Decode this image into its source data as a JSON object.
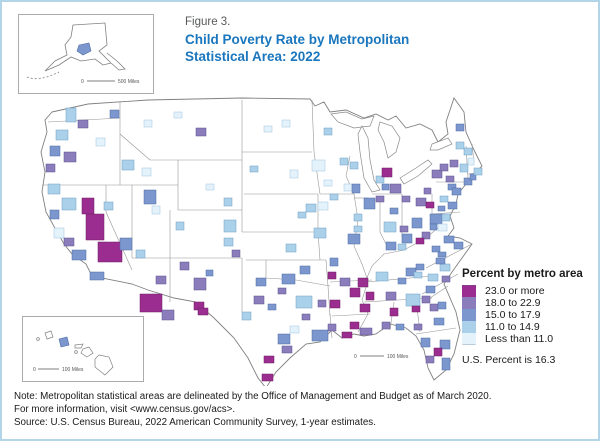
{
  "figure": {
    "label": "Figure 3.",
    "title_line1": "Child Poverty Rate by Metropolitan",
    "title_line2": "Statistical Area: 2022"
  },
  "legend": {
    "title": "Percent by metro area",
    "items": [
      {
        "label": "23.0 or more",
        "color": "#9B2D90",
        "border": "#6B1E63"
      },
      {
        "label": "18.0 to 22.9",
        "color": "#8B7CBB",
        "border": "#5D5390"
      },
      {
        "label": "15.0 to 17.9",
        "color": "#7C97CD",
        "border": "#4F6BA6"
      },
      {
        "label": "11.0 to 14.9",
        "color": "#AAD0EA",
        "border": "#6E9EC6"
      },
      {
        "label": "Less than 11.0",
        "color": "#E4F2FB",
        "border": "#9FC4DC"
      }
    ],
    "us_note": "U.S. Percent is 16.3"
  },
  "insets": {
    "alaska": {
      "scale_zero": "0",
      "scale_label": "500 Miles"
    },
    "hawaii": {
      "scale_zero": "0",
      "scale_label": "100 Miles"
    }
  },
  "map": {
    "scale_zero": "0",
    "scale_label": "100 Miles",
    "metros": [
      [
        34,
        112,
        14,
        12,
        4
      ],
      [
        22,
        124,
        9,
        9,
        3
      ],
      [
        26,
        142,
        10,
        10,
        5
      ],
      [
        54,
        112,
        12,
        16,
        1
      ],
      [
        58,
        128,
        18,
        26,
        1
      ],
      [
        70,
        156,
        24,
        20,
        1
      ],
      [
        44,
        164,
        14,
        10,
        3
      ],
      [
        36,
        152,
        10,
        8,
        2
      ],
      [
        62,
        186,
        14,
        8,
        3
      ],
      [
        20,
        98,
        12,
        10,
        4
      ],
      [
        92,
        152,
        12,
        12,
        3
      ],
      [
        76,
        116,
        9,
        8,
        4
      ],
      [
        38,
        22,
        10,
        14,
        4
      ],
      [
        50,
        34,
        10,
        8,
        2
      ],
      [
        82,
        24,
        9,
        8,
        3
      ],
      [
        28,
        44,
        12,
        10,
        4
      ],
      [
        22,
        60,
        10,
        10,
        3
      ],
      [
        36,
        66,
        12,
        10,
        2
      ],
      [
        18,
        78,
        9,
        8,
        2
      ],
      [
        68,
        52,
        9,
        8,
        5
      ],
      [
        94,
        74,
        12,
        10,
        4
      ],
      [
        114,
        82,
        9,
        8,
        5
      ],
      [
        116,
        34,
        8,
        7,
        5
      ],
      [
        146,
        26,
        8,
        6,
        5
      ],
      [
        168,
        42,
        10,
        8,
        2
      ],
      [
        116,
        104,
        12,
        14,
        3
      ],
      [
        124,
        120,
        8,
        8,
        5
      ],
      [
        108,
        164,
        9,
        8,
        4
      ],
      [
        128,
        190,
        10,
        8,
        2
      ],
      [
        112,
        208,
        22,
        18,
        1
      ],
      [
        134,
        224,
        12,
        10,
        2
      ],
      [
        196,
        112,
        8,
        8,
        4
      ],
      [
        178,
        98,
        8,
        6,
        5
      ],
      [
        196,
        134,
        12,
        12,
        4
      ],
      [
        196,
        152,
        9,
        8,
        4
      ],
      [
        204,
        164,
        8,
        7,
        2
      ],
      [
        148,
        136,
        8,
        8,
        4
      ],
      [
        152,
        176,
        9,
        8,
        2
      ],
      [
        166,
        192,
        12,
        12,
        2
      ],
      [
        178,
        184,
        7,
        6,
        3
      ],
      [
        166,
        216,
        10,
        8,
        1
      ],
      [
        254,
        34,
        8,
        7,
        5
      ],
      [
        236,
        40,
        8,
        6,
        5
      ],
      [
        262,
        84,
        8,
        8,
        5
      ],
      [
        222,
        80,
        8,
        6,
        4
      ],
      [
        278,
        118,
        10,
        8,
        4
      ],
      [
        270,
        126,
        8,
        6,
        4
      ],
      [
        258,
        158,
        10,
        8,
        4
      ],
      [
        286,
        142,
        12,
        10,
        4
      ],
      [
        254,
        188,
        13,
        10,
        3
      ],
      [
        272,
        180,
        10,
        8,
        3
      ],
      [
        250,
        202,
        8,
        6,
        2
      ],
      [
        228,
        192,
        10,
        8,
        3
      ],
      [
        226,
        210,
        10,
        8,
        2
      ],
      [
        170,
        222,
        10,
        7,
        1
      ],
      [
        214,
        226,
        9,
        8,
        4
      ],
      [
        240,
        218,
        8,
        6,
        3
      ],
      [
        268,
        210,
        16,
        12,
        4
      ],
      [
        274,
        228,
        8,
        6,
        2
      ],
      [
        262,
        240,
        9,
        7,
        5
      ],
      [
        250,
        248,
        12,
        10,
        3
      ],
      [
        284,
        244,
        16,
        11,
        3
      ],
      [
        254,
        260,
        10,
        7,
        2
      ],
      [
        236,
        270,
        10,
        7,
        1
      ],
      [
        234,
        288,
        11,
        7,
        1
      ],
      [
        290,
        214,
        8,
        7,
        2
      ],
      [
        300,
        238,
        8,
        7,
        2
      ],
      [
        296,
        42,
        8,
        7,
        4
      ],
      [
        284,
        74,
        13,
        11,
        5
      ],
      [
        296,
        94,
        8,
        6,
        5
      ],
      [
        316,
        98,
        8,
        7,
        5
      ],
      [
        324,
        98,
        8,
        9,
        3
      ],
      [
        322,
        76,
        8,
        7,
        4
      ],
      [
        312,
        72,
        8,
        7,
        4
      ],
      [
        348,
        90,
        8,
        7,
        4
      ],
      [
        362,
        98,
        11,
        9,
        2
      ],
      [
        354,
        82,
        10,
        9,
        1
      ],
      [
        354,
        98,
        7,
        6,
        3
      ],
      [
        348,
        110,
        8,
        6,
        2
      ],
      [
        290,
        116,
        10,
        8,
        5
      ],
      [
        302,
        108,
        8,
        6,
        4
      ],
      [
        320,
        148,
        12,
        10,
        3
      ],
      [
        302,
        172,
        8,
        8,
        3
      ],
      [
        336,
        112,
        11,
        11,
        3
      ],
      [
        326,
        128,
        8,
        7,
        4
      ],
      [
        326,
        140,
        8,
        6,
        4
      ],
      [
        356,
        136,
        12,
        10,
        4
      ],
      [
        362,
        122,
        8,
        6,
        3
      ],
      [
        374,
        148,
        10,
        9,
        3
      ],
      [
        384,
        132,
        10,
        10,
        3
      ],
      [
        388,
        112,
        10,
        8,
        2
      ],
      [
        374,
        110,
        8,
        6,
        2
      ],
      [
        372,
        140,
        8,
        6,
        2
      ],
      [
        398,
        116,
        8,
        6,
        1
      ],
      [
        358,
        156,
        10,
        8,
        3
      ],
      [
        370,
        158,
        8,
        6,
        4
      ],
      [
        348,
        186,
        12,
        9,
        4
      ],
      [
        330,
        192,
        10,
        9,
        1
      ],
      [
        378,
        182,
        10,
        8,
        3
      ],
      [
        370,
        192,
        8,
        6,
        3
      ],
      [
        394,
        146,
        8,
        7,
        2
      ],
      [
        404,
        160,
        8,
        6,
        3
      ],
      [
        416,
        150,
        10,
        7,
        3
      ],
      [
        426,
        156,
        9,
        7,
        3
      ],
      [
        312,
        192,
        10,
        8,
        2
      ],
      [
        300,
        186,
        8,
        7,
        1
      ],
      [
        322,
        202,
        10,
        9,
        1
      ],
      [
        338,
        206,
        8,
        8,
        1
      ],
      [
        332,
        218,
        10,
        8,
        1
      ],
      [
        358,
        206,
        10,
        8,
        2
      ],
      [
        362,
        222,
        8,
        8,
        1
      ],
      [
        354,
        236,
        8,
        7,
        2
      ],
      [
        332,
        242,
        12,
        7,
        2
      ],
      [
        322,
        236,
        9,
        7,
        1
      ],
      [
        302,
        214,
        10,
        8,
        1
      ],
      [
        314,
        246,
        10,
        6,
        1
      ],
      [
        378,
        208,
        14,
        12,
        4
      ],
      [
        394,
        210,
        8,
        7,
        2
      ],
      [
        402,
        218,
        8,
        7,
        2
      ],
      [
        398,
        200,
        9,
        7,
        3
      ],
      [
        400,
        188,
        10,
        7,
        4
      ],
      [
        412,
        178,
        10,
        7,
        4
      ],
      [
        408,
        172,
        9,
        6,
        3
      ],
      [
        386,
        186,
        8,
        6,
        4
      ],
      [
        414,
        190,
        8,
        6,
        2
      ],
      [
        410,
        216,
        8,
        7,
        3
      ],
      [
        384,
        220,
        8,
        6,
        1
      ],
      [
        386,
        238,
        8,
        6,
        2
      ],
      [
        406,
        232,
        10,
        7,
        3
      ],
      [
        412,
        254,
        10,
        9,
        3
      ],
      [
        393,
        252,
        9,
        9,
        3
      ],
      [
        406,
        262,
        8,
        8,
        1
      ],
      [
        414,
        272,
        8,
        12,
        3
      ],
      [
        398,
        270,
        8,
        7,
        2
      ],
      [
        368,
        238,
        8,
        6,
        3
      ],
      [
        402,
        128,
        12,
        10,
        3
      ],
      [
        396,
        102,
        7,
        6,
        2
      ],
      [
        404,
        84,
        10,
        8,
        2
      ],
      [
        412,
        78,
        8,
        7,
        2
      ],
      [
        422,
        74,
        8,
        7,
        2
      ],
      [
        432,
        78,
        8,
        8,
        4
      ],
      [
        418,
        90,
        8,
        6,
        2
      ],
      [
        420,
        98,
        8,
        6,
        3
      ],
      [
        424,
        102,
        9,
        7,
        3
      ],
      [
        420,
        116,
        9,
        7,
        3
      ],
      [
        412,
        110,
        8,
        6,
        4
      ],
      [
        414,
        128,
        8,
        7,
        4
      ],
      [
        410,
        138,
        9,
        7,
        5
      ],
      [
        436,
        92,
        8,
        7,
        3
      ],
      [
        442,
        88,
        6,
        6,
        3
      ],
      [
        446,
        82,
        8,
        7,
        4
      ],
      [
        436,
        62,
        8,
        7,
        4
      ],
      [
        428,
        56,
        8,
        7,
        4
      ],
      [
        428,
        38,
        8,
        7,
        3
      ],
      [
        440,
        72,
        6,
        7,
        5
      ],
      [
        410,
        120,
        7,
        5,
        3
      ],
      [
        402,
        138,
        7,
        6,
        3
      ],
      [
        388,
        152,
        8,
        6,
        1
      ],
      [
        388,
        178,
        8,
        6,
        3
      ],
      [
        410,
        166,
        8,
        5,
        3
      ]
    ]
  },
  "notes": {
    "line1": "Note: Metropolitan statistical areas are delineated by the Office of Management and Budget as of March 2020.",
    "line2": "For more information, visit <www.census.gov/acs>.",
    "line3": "Source: U.S. Census Bureau, 2022 American Community Survey, 1-year estimates."
  },
  "colors": {
    "title_blue": "#1A76BD",
    "figure_border": "#B3D5E8",
    "state_line": "#969696",
    "coast_line": "#808080"
  }
}
